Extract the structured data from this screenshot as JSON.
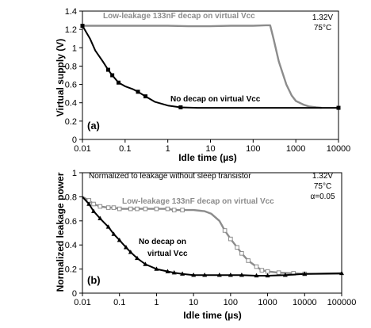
{
  "chart_data": [
    {
      "id": "a",
      "type": "line",
      "panel_label": "(a)",
      "xlabel": "Idle time (µs)",
      "ylabel": "Virtual supply (V)",
      "xscale": "log",
      "xlim": [
        0.01,
        10000
      ],
      "ylim": [
        0,
        1.4
      ],
      "xticks": [
        0.01,
        0.1,
        1,
        10,
        100,
        1000,
        10000
      ],
      "xtick_labels": [
        "0.01",
        "0.1",
        "1",
        "10",
        "100",
        "1000",
        "10000"
      ],
      "yticks": [
        0,
        0.2,
        0.4,
        0.6,
        0.8,
        1,
        1.2,
        1.4
      ],
      "ytick_labels": [
        "0",
        "0.2",
        "0.4",
        "0.6",
        "0.8",
        "1",
        "1.2",
        "1.4"
      ],
      "conditions": [
        "1.32V",
        "75°C"
      ],
      "series": [
        {
          "name": "Low-leakage 133nF decap on virtual Vcc",
          "color": "#8c8c8c",
          "marker": "none",
          "x": [
            0.01,
            0.03,
            0.1,
            0.3,
            1,
            3,
            10,
            30,
            100,
            200,
            250,
            300,
            400,
            600,
            800,
            1000,
            1500,
            2000,
            3000,
            4000
          ],
          "y": [
            1.24,
            1.24,
            1.24,
            1.24,
            1.24,
            1.235,
            1.235,
            1.24,
            1.24,
            1.245,
            1.245,
            1.1,
            0.85,
            0.6,
            0.48,
            0.42,
            0.38,
            0.36,
            0.35,
            0.345
          ]
        },
        {
          "name": "No decap on virtual Vcc",
          "color": "#000000",
          "marker": "square",
          "x": [
            0.01,
            0.015,
            0.02,
            0.03,
            0.04,
            0.05,
            0.07,
            0.1,
            0.15,
            0.2,
            0.3,
            0.5,
            1,
            2,
            5,
            10,
            100,
            1000,
            10000
          ],
          "y": [
            1.24,
            1.1,
            0.97,
            0.85,
            0.76,
            0.7,
            0.62,
            0.58,
            0.55,
            0.52,
            0.47,
            0.41,
            0.37,
            0.35,
            0.345,
            0.345,
            0.345,
            0.345,
            0.345
          ],
          "marked_x": [
            0.01,
            0.04,
            0.05,
            0.07,
            0.2,
            0.3,
            2,
            10000
          ]
        }
      ]
    },
    {
      "id": "b",
      "type": "line",
      "panel_label": "(b)",
      "xlabel": "Idle time (µs)",
      "ylabel": "Normalized leakage power",
      "xscale": "log",
      "xlim": [
        0.01,
        100000
      ],
      "ylim": [
        0,
        1
      ],
      "xticks": [
        0.01,
        0.1,
        1,
        10,
        100,
        1000,
        10000,
        100000
      ],
      "xtick_labels": [
        "0.01",
        "0.1",
        "1",
        "10",
        "100",
        "1000",
        "10000",
        "100000"
      ],
      "yticks": [
        0,
        0.2,
        0.4,
        0.6,
        0.8,
        1
      ],
      "ytick_labels": [
        "0",
        "0.2",
        "0.4",
        "0.6",
        "0.8",
        "1"
      ],
      "annotation": "Normalized to leakage without sleep transistor",
      "conditions": [
        "1.32V",
        "75°C",
        "α=0.05"
      ],
      "series": [
        {
          "name": "Low-leakage 133nF decap on virtual Vcc",
          "color": "#8c8c8c",
          "marker": "open-square",
          "x": [
            0.01,
            0.015,
            0.02,
            0.03,
            0.05,
            0.07,
            0.1,
            0.2,
            0.3,
            0.5,
            1,
            2,
            3,
            5,
            10,
            20,
            30,
            50,
            70,
            100,
            150,
            200,
            300,
            500,
            700,
            1000,
            2000,
            5000,
            10000,
            100000
          ],
          "y": [
            0.8,
            0.77,
            0.74,
            0.72,
            0.71,
            0.71,
            0.7,
            0.7,
            0.7,
            0.7,
            0.7,
            0.7,
            0.69,
            0.69,
            0.69,
            0.68,
            0.66,
            0.6,
            0.52,
            0.45,
            0.38,
            0.33,
            0.27,
            0.22,
            0.19,
            0.18,
            0.17,
            0.165,
            0.16,
            0.16
          ],
          "marked_x": [
            0.015,
            0.02,
            0.03,
            0.05,
            0.07,
            0.1,
            0.2,
            0.3,
            0.5,
            1,
            2,
            3,
            5,
            70,
            100,
            150,
            200,
            300,
            500,
            700,
            1000,
            2000,
            5000,
            10000
          ]
        },
        {
          "name": "No decap on virtual Vcc",
          "color": "#000000",
          "marker": "triangle",
          "x": [
            0.01,
            0.015,
            0.02,
            0.03,
            0.05,
            0.07,
            0.1,
            0.15,
            0.2,
            0.3,
            0.5,
            1,
            2,
            3,
            5,
            10,
            20,
            50,
            100,
            200,
            500,
            1000,
            3000,
            10000,
            100000
          ],
          "y": [
            0.8,
            0.74,
            0.68,
            0.62,
            0.55,
            0.49,
            0.44,
            0.38,
            0.34,
            0.29,
            0.24,
            0.2,
            0.18,
            0.17,
            0.16,
            0.15,
            0.15,
            0.15,
            0.15,
            0.15,
            0.145,
            0.145,
            0.15,
            0.16,
            0.165
          ],
          "marked_x": [
            0.015,
            0.02,
            0.03,
            0.05,
            0.07,
            0.1,
            0.15,
            0.2,
            0.3,
            0.5,
            1,
            2,
            3,
            5,
            10,
            20,
            50,
            100,
            200,
            500,
            1000,
            3000,
            10000,
            100000
          ]
        }
      ]
    }
  ]
}
